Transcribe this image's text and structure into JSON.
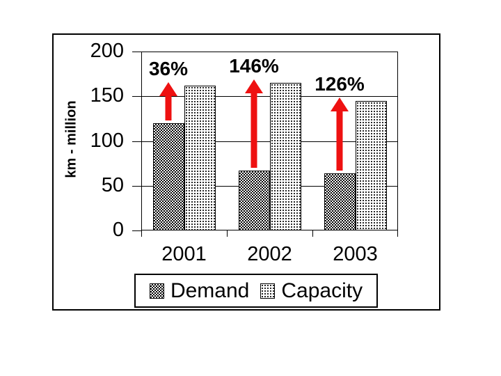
{
  "chart_data": {
    "type": "bar",
    "title": "",
    "ylabel": "km - million",
    "categories": [
      "2001",
      "2002",
      "2003"
    ],
    "series": [
      {
        "name": "Demand",
        "values": [
          120,
          67,
          64
        ],
        "pattern": "dark-checker"
      },
      {
        "name": "Capacity",
        "values": [
          162,
          165,
          145
        ],
        "pattern": "light-dots"
      }
    ],
    "annotations": [
      {
        "label": "36%",
        "category": "2001"
      },
      {
        "label": "146%",
        "category": "2002"
      },
      {
        "label": "126%",
        "category": "2003"
      }
    ],
    "yticks": [
      200,
      150,
      100,
      50,
      0
    ],
    "ylim": [
      0,
      200
    ],
    "grid": true,
    "legend_position": "bottom",
    "colors": {
      "arrow": "#ee1111",
      "axis": "#000000",
      "background": "#ffffff"
    }
  }
}
